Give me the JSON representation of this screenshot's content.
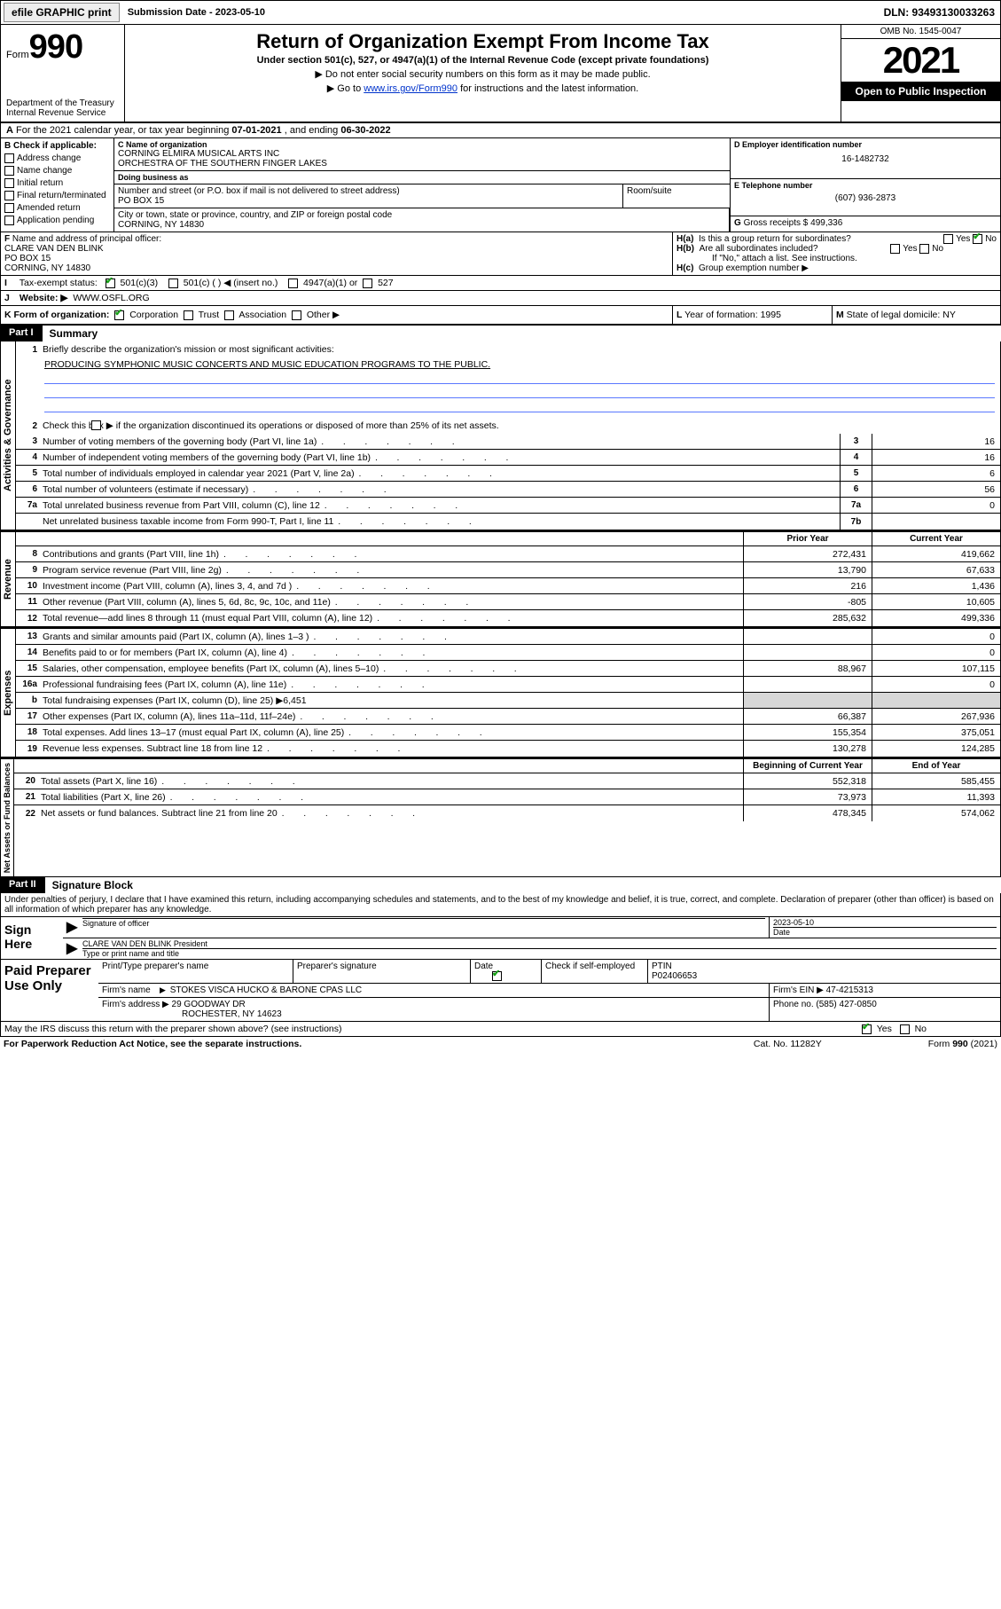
{
  "top_bar": {
    "efile": "efile GRAPHIC print",
    "sub_label": "Submission Date - ",
    "sub_date": "2023-05-10",
    "dln": "DLN: 93493130033263"
  },
  "header": {
    "form_word": "Form",
    "form_num": "990",
    "dept": "Department of the Treasury\nInternal Revenue Service",
    "title": "Return of Organization Exempt From Income Tax",
    "sub": "Under section 501(c), 527, or 4947(a)(1) of the Internal Revenue Code (except private foundations)",
    "note1": "▶ Do not enter social security numbers on this form as it may be made public.",
    "note2_pre": "▶ Go to ",
    "note2_link": "www.irs.gov/Form990",
    "note2_post": " for instructions and the latest information.",
    "omb": "OMB No. 1545-0047",
    "year": "2021",
    "open": "Open to Public Inspection"
  },
  "period": {
    "a": "A",
    "text_pre": " For the 2021 calendar year, or tax year beginning ",
    "begin": "07-01-2021",
    "mid": " , and ending ",
    "end": "06-30-2022"
  },
  "B": {
    "label": "B Check if applicable:",
    "opts": [
      {
        "txt": "Address change",
        "chk": false
      },
      {
        "txt": "Name change",
        "chk": false
      },
      {
        "txt": "Initial return",
        "chk": false
      },
      {
        "txt": "Final return/terminated",
        "chk": false
      },
      {
        "txt": "Amended return",
        "chk": false
      },
      {
        "txt": "Application pending",
        "chk": false
      }
    ]
  },
  "C": {
    "name_lbl": "C Name of organization",
    "name": "CORNING ELMIRA MUSICAL ARTS INC\nORCHESTRA OF THE SOUTHERN FINGER LAKES",
    "dba_lbl": "Doing business as",
    "dba": "",
    "addr_lbl": "Number and street (or P.O. box if mail is not delivered to street address)",
    "room_lbl": "Room/suite",
    "addr": "PO BOX 15",
    "city_lbl": "City or town, state or province, country, and ZIP or foreign postal code",
    "city": "CORNING, NY  14830"
  },
  "D": {
    "lbl": "D Employer identification number",
    "val": "16-1482732"
  },
  "E": {
    "lbl": "E Telephone number",
    "val": "(607) 936-2873"
  },
  "G": {
    "lbl": "G",
    "txt": "Gross receipts $",
    "val": "499,336"
  },
  "F": {
    "lbl": "F",
    "txt": "Name and address of principal officer:",
    "name": "CLARE VAN DEN BLINK",
    "addr1": "PO BOX 15",
    "addr2": "CORNING, NY  14830"
  },
  "H": {
    "a_lbl": "H(a)",
    "a_txt": "Is this a group return for subordinates?",
    "a_yes": "Yes",
    "a_no": "No",
    "b_lbl": "H(b)",
    "b_txt": "Are all subordinates included?",
    "b_hint": "If \"No,\" attach a list. See instructions.",
    "c_lbl": "H(c)",
    "c_txt": "Group exemption number ▶"
  },
  "I": {
    "idx": "I",
    "lbl": "Tax-exempt status:",
    "o1": "501(c)(3)",
    "o2": "501(c) (   ) ◀ (insert no.)",
    "o3": "4947(a)(1) or",
    "o4": "527"
  },
  "J": {
    "idx": "J",
    "lbl": "Website: ▶",
    "val": "WWW.OSFL.ORG"
  },
  "K": {
    "lbl": "K Form of organization:",
    "o1": "Corporation",
    "o2": "Trust",
    "o3": "Association",
    "o4": "Other ▶"
  },
  "L": {
    "lbl": "L",
    "txt": "Year of formation:",
    "val": "1995"
  },
  "M": {
    "lbl": "M",
    "txt": "State of legal domicile:",
    "val": "NY"
  },
  "part1": {
    "tab": "Part I",
    "title": "Summary"
  },
  "q1": {
    "num": "1",
    "txt": "Briefly describe the organization's mission or most significant activities:",
    "val": "PRODUCING SYMPHONIC MUSIC CONCERTS AND MUSIC EDUCATION PROGRAMS TO THE PUBLIC."
  },
  "q2": {
    "num": "2",
    "txt": "Check this box ▶        if the organization discontinued its operations or disposed of more than 25% of its net assets."
  },
  "gov_rows": [
    {
      "num": "3",
      "txt": "Number of voting members of the governing body (Part VI, line 1a)",
      "box": "3",
      "amt": "16"
    },
    {
      "num": "4",
      "txt": "Number of independent voting members of the governing body (Part VI, line 1b)",
      "box": "4",
      "amt": "16"
    },
    {
      "num": "5",
      "txt": "Total number of individuals employed in calendar year 2021 (Part V, line 2a)",
      "box": "5",
      "amt": "6"
    },
    {
      "num": "6",
      "txt": "Total number of volunteers (estimate if necessary)",
      "box": "6",
      "amt": "56"
    },
    {
      "num": "7a",
      "txt": "Total unrelated business revenue from Part VIII, column (C), line 12",
      "box": "7a",
      "amt": "0"
    },
    {
      "num": "",
      "txt": "Net unrelated business taxable income from Form 990-T, Part I, line 11",
      "box": "7b",
      "amt": ""
    }
  ],
  "rev_hdr": {
    "prior": "Prior Year",
    "curr": "Current Year"
  },
  "revenue": [
    {
      "num": "8",
      "txt": "Contributions and grants (Part VIII, line 1h)",
      "p": "272,431",
      "c": "419,662"
    },
    {
      "num": "9",
      "txt": "Program service revenue (Part VIII, line 2g)",
      "p": "13,790",
      "c": "67,633"
    },
    {
      "num": "10",
      "txt": "Investment income (Part VIII, column (A), lines 3, 4, and 7d )",
      "p": "216",
      "c": "1,436"
    },
    {
      "num": "11",
      "txt": "Other revenue (Part VIII, column (A), lines 5, 6d, 8c, 9c, 10c, and 11e)",
      "p": "-805",
      "c": "10,605"
    },
    {
      "num": "12",
      "txt": "Total revenue—add lines 8 through 11 (must equal Part VIII, column (A), line 12)",
      "p": "285,632",
      "c": "499,336"
    }
  ],
  "expenses": [
    {
      "num": "13",
      "txt": "Grants and similar amounts paid (Part IX, column (A), lines 1–3 )",
      "p": "",
      "c": "0"
    },
    {
      "num": "14",
      "txt": "Benefits paid to or for members (Part IX, column (A), line 4)",
      "p": "",
      "c": "0"
    },
    {
      "num": "15",
      "txt": "Salaries, other compensation, employee benefits (Part IX, column (A), lines 5–10)",
      "p": "88,967",
      "c": "107,115"
    },
    {
      "num": "16a",
      "txt": "Professional fundraising fees (Part IX, column (A), line 11e)",
      "p": "",
      "c": "0"
    },
    {
      "num": "b",
      "txt": "Total fundraising expenses (Part IX, column (D), line 25) ▶6,451",
      "grey": true
    },
    {
      "num": "17",
      "txt": "Other expenses (Part IX, column (A), lines 11a–11d, 11f–24e)",
      "p": "66,387",
      "c": "267,936"
    },
    {
      "num": "18",
      "txt": "Total expenses. Add lines 13–17 (must equal Part IX, column (A), line 25)",
      "p": "155,354",
      "c": "375,051"
    },
    {
      "num": "19",
      "txt": "Revenue less expenses. Subtract line 18 from line 12",
      "p": "130,278",
      "c": "124,285"
    }
  ],
  "na_hdr": {
    "begin": "Beginning of Current Year",
    "end": "End of Year"
  },
  "netassets": [
    {
      "num": "20",
      "txt": "Total assets (Part X, line 16)",
      "p": "552,318",
      "c": "585,455"
    },
    {
      "num": "21",
      "txt": "Total liabilities (Part X, line 26)",
      "p": "73,973",
      "c": "11,393"
    },
    {
      "num": "22",
      "txt": "Net assets or fund balances. Subtract line 21 from line 20",
      "p": "478,345",
      "c": "574,062"
    }
  ],
  "part2": {
    "tab": "Part II",
    "title": "Signature Block"
  },
  "decl": "Under penalties of perjury, I declare that I have examined this return, including accompanying schedules and statements, and to the best of my knowledge and belief, it is true, correct, and complete. Declaration of preparer (other than officer) is based on all information of which preparer has any knowledge.",
  "sign": {
    "here": "Sign Here",
    "sig_lbl": "Signature of officer",
    "date_lbl": "Date",
    "date": "2023-05-10",
    "name": "CLARE VAN DEN BLINK  President",
    "name_lbl": "Type or print name and title"
  },
  "paid": {
    "title": "Paid Preparer Use Only",
    "h1": "Print/Type preparer's name",
    "h2": "Preparer's signature",
    "h3": "Date",
    "h4": "Check          if self-employed",
    "h5": "PTIN",
    "ptin": "P02406653",
    "firm_name_lbl": "Firm's name",
    "firm_name": "STOKES VISCA HUCKO & BARONE CPAS LLC",
    "firm_ein_lbl": "Firm's EIN ▶",
    "firm_ein": "47-4215313",
    "firm_addr_lbl": "Firm's address ▶",
    "firm_addr": "29 GOODWAY DR",
    "firm_city": "ROCHESTER, NY  14623",
    "phone_lbl": "Phone no.",
    "phone": "(585) 427-0850"
  },
  "may_irs": "May the IRS discuss this return with the preparer shown above? (see instructions)",
  "may_yes": "Yes",
  "may_no": "No",
  "footer": {
    "left": "For Paperwork Reduction Act Notice, see the separate instructions.",
    "mid": "Cat. No. 11282Y",
    "right": "Form 990 (2021)"
  },
  "vlabels": {
    "gov": "Activities & Governance",
    "rev": "Revenue",
    "exp": "Expenses",
    "na": "Net Assets or Fund Balances"
  }
}
